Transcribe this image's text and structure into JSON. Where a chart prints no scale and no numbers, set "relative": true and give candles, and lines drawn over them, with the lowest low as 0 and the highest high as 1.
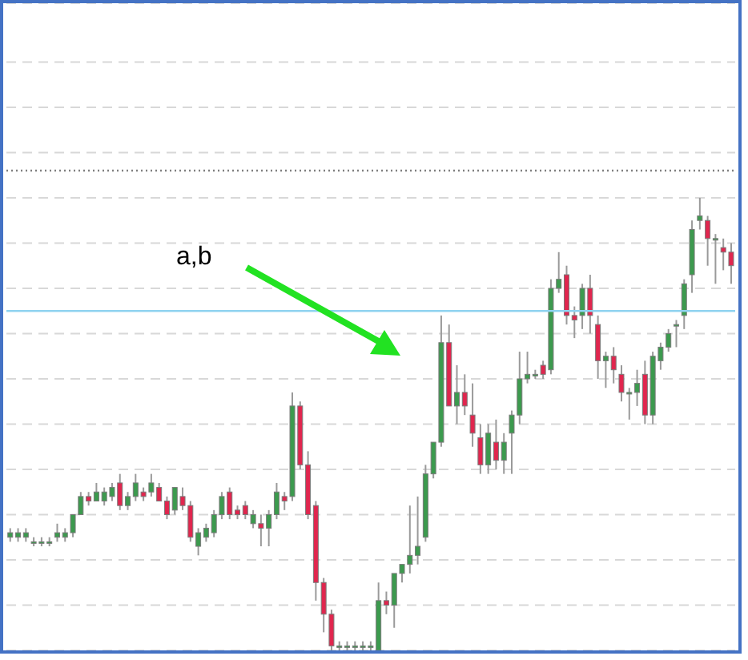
{
  "chart_data": {
    "type": "candlestick",
    "relative": true,
    "grid": "y",
    "annotations": [
      "a,b"
    ],
    "categories": [
      null,
      null,
      null,
      null,
      null,
      null,
      null,
      null,
      null,
      null,
      null,
      null,
      null,
      null,
      null,
      null,
      null,
      null,
      null,
      null,
      null,
      null,
      null,
      null,
      null,
      null,
      null,
      null,
      null,
      null,
      null,
      null,
      null,
      null,
      null,
      null,
      null,
      null,
      null,
      null,
      null,
      null,
      null,
      null,
      null,
      null,
      null,
      null,
      null,
      null,
      null,
      null,
      null,
      null,
      null,
      null,
      null,
      null,
      null,
      null,
      null,
      null,
      null,
      null,
      null,
      null,
      null,
      null,
      null,
      null,
      null,
      null,
      null,
      null,
      null,
      null,
      null,
      null,
      null,
      null,
      null,
      null,
      null,
      null,
      null,
      null,
      null,
      null,
      null,
      null,
      null,
      null,
      null
    ],
    "ohlc": [
      [
        0.25,
        0.27,
        0.24,
        0.26
      ],
      [
        0.25,
        0.27,
        0.24,
        0.26
      ],
      [
        0.25,
        0.27,
        0.24,
        0.26
      ],
      [
        0.24,
        0.25,
        0.23,
        0.24
      ],
      [
        0.24,
        0.25,
        0.23,
        0.24
      ],
      [
        0.24,
        0.25,
        0.23,
        0.24
      ],
      [
        0.25,
        0.28,
        0.24,
        0.26
      ],
      [
        0.25,
        0.27,
        0.24,
        0.26
      ],
      [
        0.26,
        0.3,
        0.25,
        0.3
      ],
      [
        0.3,
        0.35,
        0.3,
        0.34
      ],
      [
        0.34,
        0.35,
        0.32,
        0.33
      ],
      [
        0.33,
        0.37,
        0.33,
        0.35
      ],
      [
        0.33,
        0.36,
        0.32,
        0.35
      ],
      [
        0.34,
        0.37,
        0.33,
        0.36
      ],
      [
        0.37,
        0.39,
        0.31,
        0.32
      ],
      [
        0.32,
        0.35,
        0.31,
        0.34
      ],
      [
        0.34,
        0.39,
        0.33,
        0.37
      ],
      [
        0.35,
        0.36,
        0.33,
        0.34
      ],
      [
        0.35,
        0.39,
        0.34,
        0.37
      ],
      [
        0.36,
        0.37,
        0.33,
        0.33
      ],
      [
        0.33,
        0.34,
        0.29,
        0.3
      ],
      [
        0.31,
        0.36,
        0.3,
        0.36
      ],
      [
        0.34,
        0.36,
        0.31,
        0.32
      ],
      [
        0.32,
        0.33,
        0.24,
        0.25
      ],
      [
        0.23,
        0.27,
        0.21,
        0.26
      ],
      [
        0.25,
        0.28,
        0.24,
        0.27
      ],
      [
        0.26,
        0.31,
        0.25,
        0.3
      ],
      [
        0.3,
        0.35,
        0.29,
        0.34
      ],
      [
        0.35,
        0.36,
        0.29,
        0.3
      ],
      [
        0.31,
        0.32,
        0.29,
        0.3
      ],
      [
        0.32,
        0.33,
        0.29,
        0.3
      ],
      [
        0.28,
        0.31,
        0.27,
        0.3
      ],
      [
        0.28,
        0.3,
        0.23,
        0.27
      ],
      [
        0.27,
        0.31,
        0.23,
        0.3
      ],
      [
        0.3,
        0.37,
        0.29,
        0.35
      ],
      [
        0.34,
        0.35,
        0.31,
        0.33
      ],
      [
        0.34,
        0.57,
        0.33,
        0.54
      ],
      [
        0.54,
        0.55,
        0.4,
        0.41
      ],
      [
        0.41,
        0.44,
        0.29,
        0.3
      ],
      [
        0.32,
        0.33,
        0.11,
        0.15
      ],
      [
        0.15,
        0.16,
        0.04,
        0.08
      ],
      [
        0.08,
        0.09,
        0,
        0.01
      ],
      [
        0.01,
        0.02,
        0,
        0.01
      ],
      [
        0.01,
        0.02,
        0,
        0.01
      ],
      [
        0.01,
        0.02,
        0,
        0.01
      ],
      [
        0.01,
        0.02,
        0,
        0.01
      ],
      [
        0.01,
        0.02,
        0,
        0.01
      ],
      [
        0,
        0.15,
        0,
        0.11
      ],
      [
        0.11,
        0.13,
        0.08,
        0.1
      ],
      [
        0.1,
        0.17,
        0.05,
        0.17
      ],
      [
        0.17,
        0.19,
        0.15,
        0.19
      ],
      [
        0.19,
        0.32,
        0.17,
        0.21
      ],
      [
        0.21,
        0.34,
        0.19,
        0.23
      ],
      [
        0.25,
        0.41,
        0.24,
        0.39
      ],
      [
        0.39,
        0.46,
        0.38,
        0.46
      ],
      [
        0.46,
        0.74,
        0.45,
        0.68
      ],
      [
        0.68,
        0.72,
        0.54,
        0.54
      ],
      [
        0.54,
        0.63,
        0.5,
        0.57
      ],
      [
        0.57,
        0.61,
        0.52,
        0.54
      ],
      [
        0.52,
        0.59,
        0.45,
        0.48
      ],
      [
        0.47,
        0.5,
        0.39,
        0.41
      ],
      [
        0.41,
        0.5,
        0.39,
        0.48
      ],
      [
        0.46,
        0.51,
        0.4,
        0.42
      ],
      [
        0.42,
        0.48,
        0.39,
        0.46
      ],
      [
        0.48,
        0.53,
        0.39,
        0.52
      ],
      [
        0.52,
        0.66,
        0.5,
        0.6
      ],
      [
        0.6,
        0.66,
        0.59,
        0.61
      ],
      [
        0.61,
        0.62,
        0.6,
        0.61
      ],
      [
        0.63,
        0.64,
        0.6,
        0.61
      ],
      [
        0.62,
        0.82,
        0.61,
        0.8
      ],
      [
        0.8,
        0.88,
        0.79,
        0.82
      ],
      [
        0.83,
        0.85,
        0.72,
        0.74
      ],
      [
        0.74,
        0.76,
        0.69,
        0.73
      ],
      [
        0.74,
        0.81,
        0.71,
        0.8
      ],
      [
        0.8,
        0.83,
        0.7,
        0.74
      ],
      [
        0.72,
        0.74,
        0.6,
        0.64
      ],
      [
        0.64,
        0.66,
        0.58,
        0.65
      ],
      [
        0.65,
        0.67,
        0.59,
        0.62
      ],
      [
        0.61,
        0.63,
        0.55,
        0.57
      ],
      [
        0.57,
        0.58,
        0.51,
        0.57
      ],
      [
        0.57,
        0.62,
        0.54,
        0.59
      ],
      [
        0.61,
        0.64,
        0.5,
        0.52
      ],
      [
        0.52,
        0.66,
        0.5,
        0.65
      ],
      [
        0.64,
        0.68,
        0.62,
        0.67
      ],
      [
        0.67,
        0.71,
        0.66,
        0.7
      ],
      [
        0.72,
        0.73,
        0.67,
        0.72
      ],
      [
        0.74,
        0.82,
        0.71,
        0.81
      ],
      [
        0.83,
        0.95,
        0.79,
        0.93
      ],
      [
        0.95,
        1,
        0.93,
        0.96
      ],
      [
        0.95,
        0.96,
        0.85,
        0.91
      ],
      [
        0.91,
        0.92,
        0.81,
        0.91
      ],
      [
        0.89,
        0.91,
        0.84,
        0.88
      ],
      [
        0.88,
        0.9,
        0.81,
        0.85
      ]
    ],
    "colors": [
      "#3c9a4e",
      "#3c9a4e",
      "#3c9a4e",
      "#3c9a4e",
      "#3c9a4e",
      "#3c9a4e",
      "#3c9a4e",
      "#3c9a4e",
      "#3c9a4e",
      "#3c9a4e",
      "#e0264e",
      "#3c9a4e",
      "#3c9a4e",
      "#3c9a4e",
      "#e0264e",
      "#3c9a4e",
      "#3c9a4e",
      "#e0264e",
      "#3c9a4e",
      "#e0264e",
      "#e0264e",
      "#3c9a4e",
      "#e0264e",
      "#e0264e",
      "#3c9a4e",
      "#3c9a4e",
      "#3c9a4e",
      "#3c9a4e",
      "#e0264e",
      "#e0264e",
      "#e0264e",
      "#3c9a4e",
      "#e0264e",
      "#3c9a4e",
      "#3c9a4e",
      "#e0264e",
      "#3c9a4e",
      "#e0264e",
      "#e0264e",
      "#e0264e",
      "#e0264e",
      "#e0264e",
      "#3c9a4e",
      "#3c9a4e",
      "#3c9a4e",
      "#3c9a4e",
      "#3c9a4e",
      "#3c9a4e",
      "#e0264e",
      "#3c9a4e",
      "#3c9a4e",
      "#3c9a4e",
      "#3c9a4e",
      "#3c9a4e",
      "#3c9a4e",
      "#3c9a4e",
      "#e0264e",
      "#3c9a4e",
      "#e0264e",
      "#e0264e",
      "#e0264e",
      "#3c9a4e",
      "#e0264e",
      "#3c9a4e",
      "#3c9a4e",
      "#3c9a4e",
      "#3c9a4e",
      "#3c9a4e",
      "#e0264e",
      "#3c9a4e",
      "#3c9a4e",
      "#e0264e",
      "#e0264e",
      "#3c9a4e",
      "#e0264e",
      "#e0264e",
      "#3c9a4e",
      "#e0264e",
      "#e0264e",
      "#3c9a4e",
      "#3c9a4e",
      "#e0264e",
      "#3c9a4e",
      "#3c9a4e",
      "#3c9a4e",
      "#3c9a4e",
      "#3c9a4e",
      "#3c9a4e",
      "#3c9a4e",
      "#e0264e",
      "#3c9a4e",
      "#e0264e",
      "#e0264e"
    ],
    "ref_lines": [
      {
        "axis": "y",
        "value": 1.06,
        "color": "#808080",
        "line_style": "dotted"
      },
      {
        "axis": "y",
        "value": 0.75,
        "color": "#8fd3f0",
        "line_style": "solid"
      }
    ]
  }
}
